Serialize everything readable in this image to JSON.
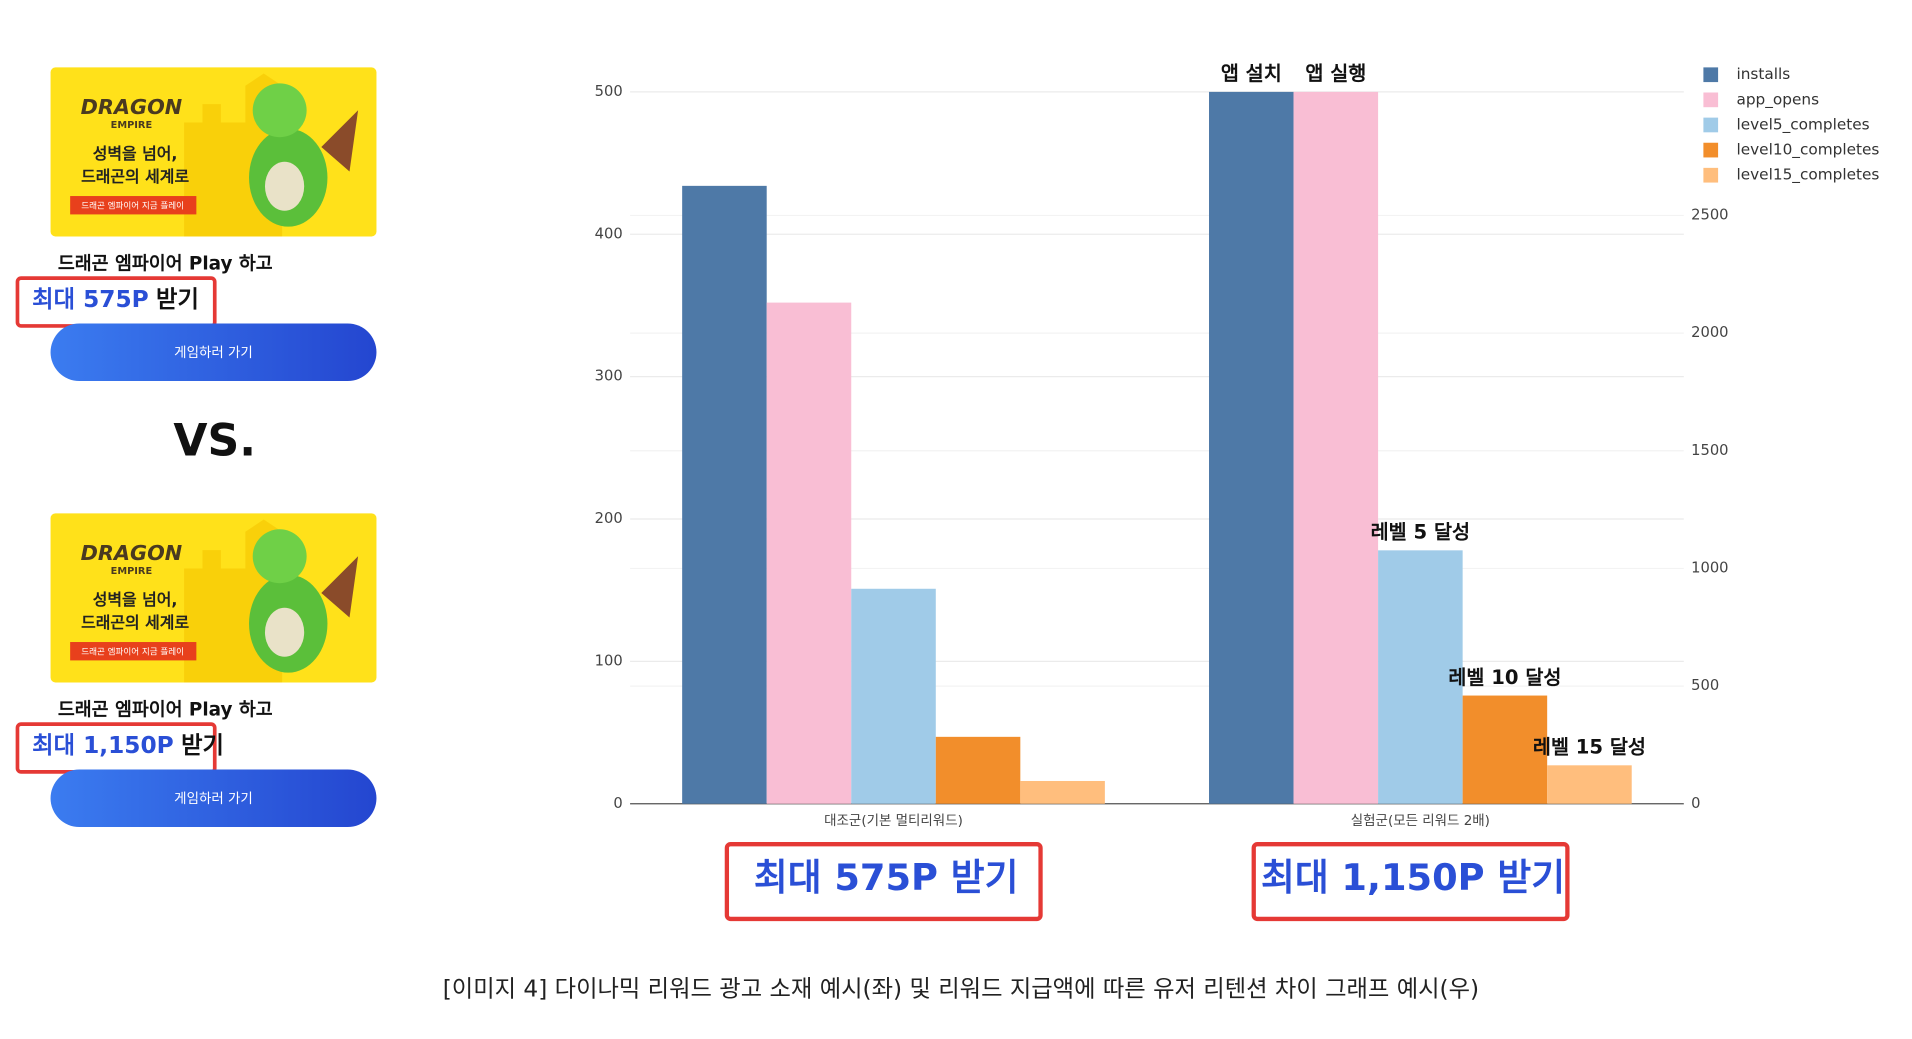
{
  "ads": [
    {
      "game_logo": "DRAGON",
      "game_logo_sub": "EMPIRE",
      "headline_1": "성벽을 넘어,",
      "headline_2": "드래곤의 세계로",
      "badge": "드래곤 엠파이어 지금 플레이",
      "title": "드래곤 엠파이어 Play 하고",
      "reward": "최대 575P",
      "reward_suffix": "받기",
      "button": "게임하러 가기"
    },
    {
      "game_logo": "DRAGON",
      "game_logo_sub": "EMPIRE",
      "headline_1": "성벽을 넘어,",
      "headline_2": "드래곤의 세계로",
      "badge": "드래곤 엠파이어 지금 플레이",
      "title": "드래곤 엠파이어 Play 하고",
      "reward": "최대 1,150P",
      "reward_suffix": "받기",
      "button": "게임하러 가기"
    }
  ],
  "vs": "VS.",
  "chart_data": {
    "type": "bar",
    "categories": [
      "대조군(기본 멀티리워드)",
      "실험군(모든 리워드 2배)"
    ],
    "series": [
      {
        "name": "installs",
        "color": "#4e79a7",
        "values": [
          434,
          500
        ]
      },
      {
        "name": "app_opens",
        "color": "#f9bed4",
        "values": [
          352,
          500
        ]
      },
      {
        "name": "level5_completes",
        "color": "#a0cbe8",
        "values": [
          151,
          178
        ]
      },
      {
        "name": "level10_completes",
        "color": "#f28e2b",
        "values": [
          47,
          76
        ]
      },
      {
        "name": "level15_completes",
        "color": "#ffbe7d",
        "values": [
          16,
          27
        ]
      }
    ],
    "ylim": [
      0,
      500
    ],
    "yticks": [
      0,
      100,
      200,
      300,
      400,
      500
    ],
    "y2lim": [
      0,
      3025
    ],
    "y2ticks": [
      0,
      500,
      1000,
      1500,
      2000,
      2500
    ],
    "grid": true,
    "legend": "right",
    "annotations": [
      "앱 설치",
      "앱 실행",
      "레벨 5 달성",
      "레벨 10 달성",
      "레벨 15 달성"
    ]
  },
  "reward_labels": [
    "최대 575P 받기",
    "최대 1,150P 받기"
  ],
  "caption": "[이미지 4] 다이나믹 리워드 광고 소재 예시(좌) 및 리워드 지급액에 따른 유저 리텐션 차이 그래프 예시(우)"
}
